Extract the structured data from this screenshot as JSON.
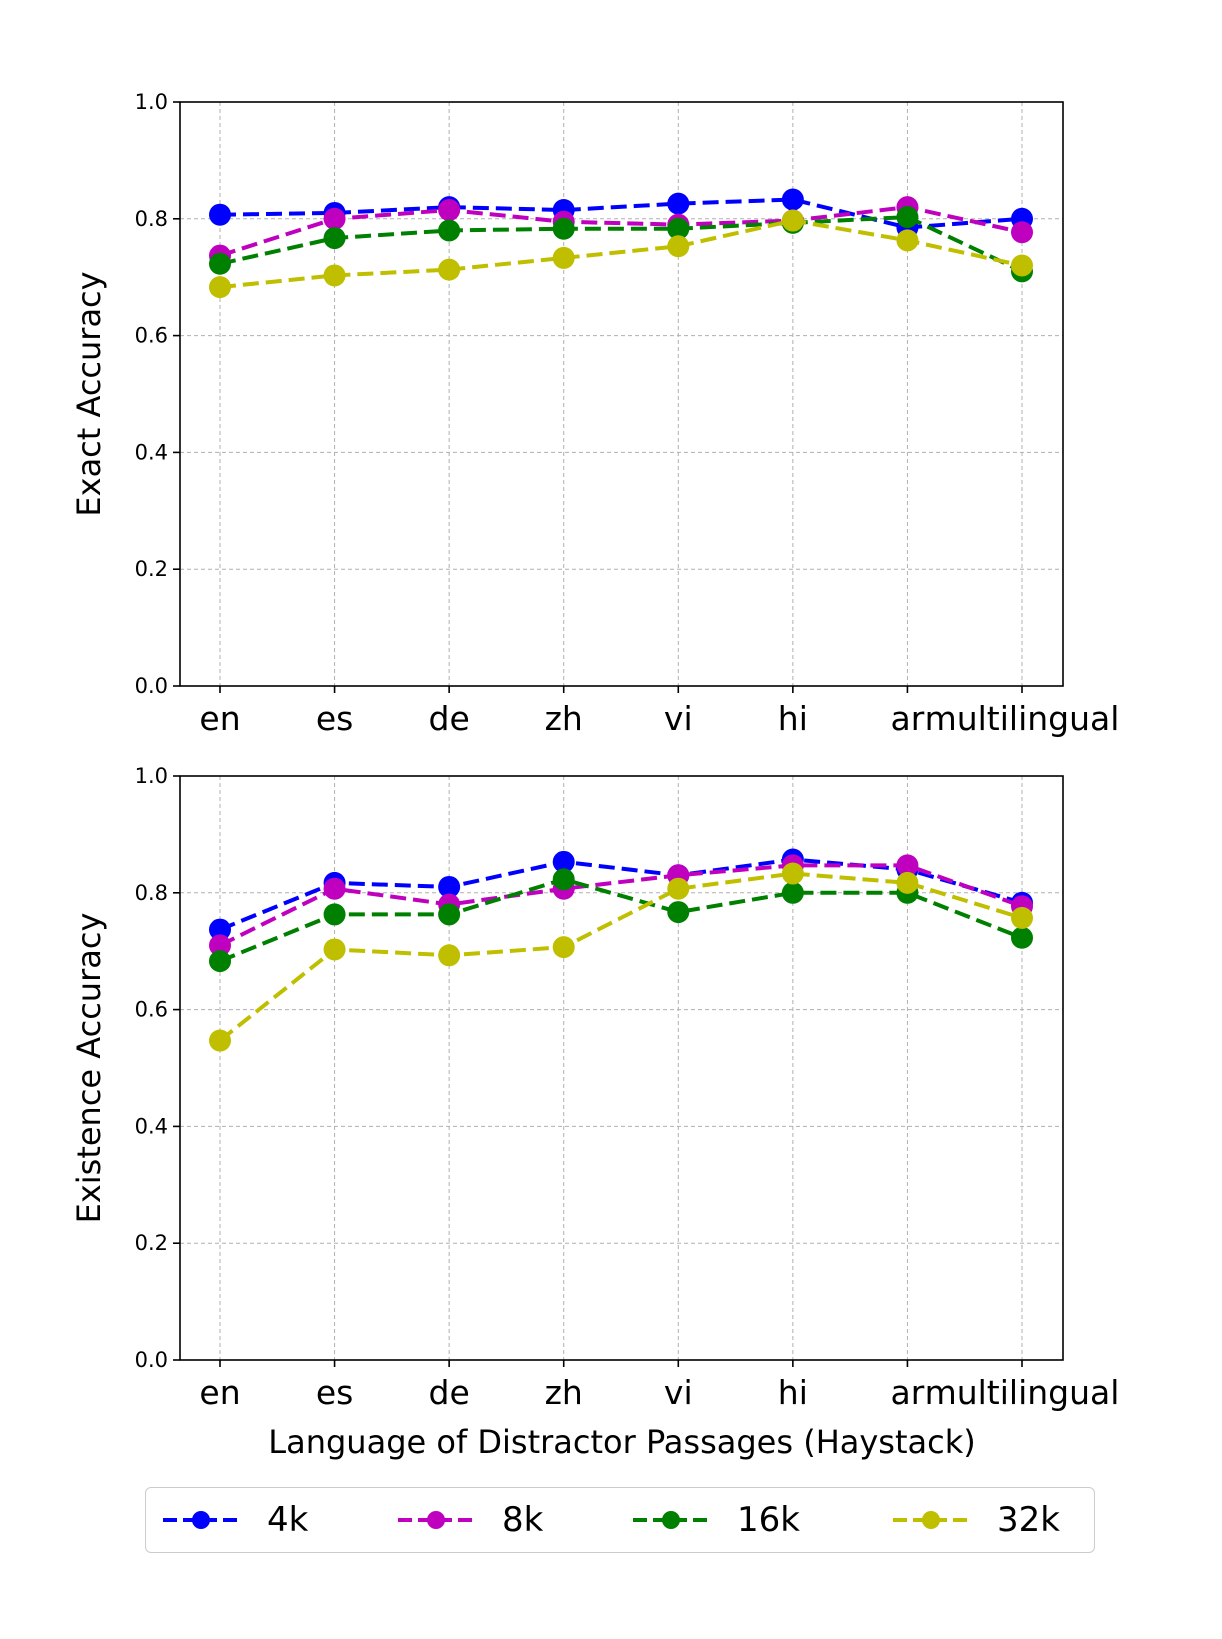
{
  "chart_data": [
    {
      "type": "line",
      "title": "",
      "xlabel": "",
      "ylabel": "Exact Accuracy",
      "categories": [
        "en",
        "es",
        "de",
        "zh",
        "vi",
        "hi",
        "ar",
        "multilingual"
      ],
      "ylim": [
        0.0,
        1.0
      ],
      "yticks": [
        "0.0",
        "0.2",
        "0.4",
        "0.6",
        "0.8",
        "1.0"
      ],
      "grid": true,
      "series": [
        {
          "name": "4k",
          "color": "#0000ff",
          "values": [
            0.807,
            0.81,
            0.82,
            0.815,
            0.826,
            0.833,
            0.785,
            0.8
          ]
        },
        {
          "name": "8k",
          "color": "#bf00bf",
          "values": [
            0.737,
            0.8,
            0.815,
            0.795,
            0.79,
            0.797,
            0.82,
            0.777
          ]
        },
        {
          "name": "16k",
          "color": "#008000",
          "values": [
            0.723,
            0.767,
            0.78,
            0.783,
            0.783,
            0.793,
            0.803,
            0.71
          ]
        },
        {
          "name": "32k",
          "color": "#bfbf00",
          "values": [
            0.683,
            0.703,
            0.713,
            0.733,
            0.753,
            0.797,
            0.763,
            0.72
          ]
        }
      ]
    },
    {
      "type": "line",
      "title": "",
      "xlabel": "Language of Distractor Passages (Haystack)",
      "ylabel": "Existence Accuracy",
      "categories": [
        "en",
        "es",
        "de",
        "zh",
        "vi",
        "hi",
        "ar",
        "multilingual"
      ],
      "ylim": [
        0.0,
        1.0
      ],
      "yticks": [
        "0.0",
        "0.2",
        "0.4",
        "0.6",
        "0.8",
        "1.0"
      ],
      "grid": true,
      "series": [
        {
          "name": "4k",
          "color": "#0000ff",
          "values": [
            0.737,
            0.817,
            0.81,
            0.853,
            0.83,
            0.857,
            0.84,
            0.783
          ]
        },
        {
          "name": "8k",
          "color": "#bf00bf",
          "values": [
            0.71,
            0.807,
            0.78,
            0.807,
            0.83,
            0.847,
            0.847,
            0.777
          ]
        },
        {
          "name": "16k",
          "color": "#008000",
          "values": [
            0.683,
            0.763,
            0.763,
            0.823,
            0.767,
            0.8,
            0.8,
            0.723
          ]
        },
        {
          "name": "32k",
          "color": "#bfbf00",
          "values": [
            0.547,
            0.703,
            0.693,
            0.707,
            0.807,
            0.833,
            0.817,
            0.757
          ]
        }
      ]
    }
  ],
  "legend": {
    "placement": "bottom-center",
    "entries": [
      "4k",
      "8k",
      "16k",
      "32k"
    ]
  }
}
